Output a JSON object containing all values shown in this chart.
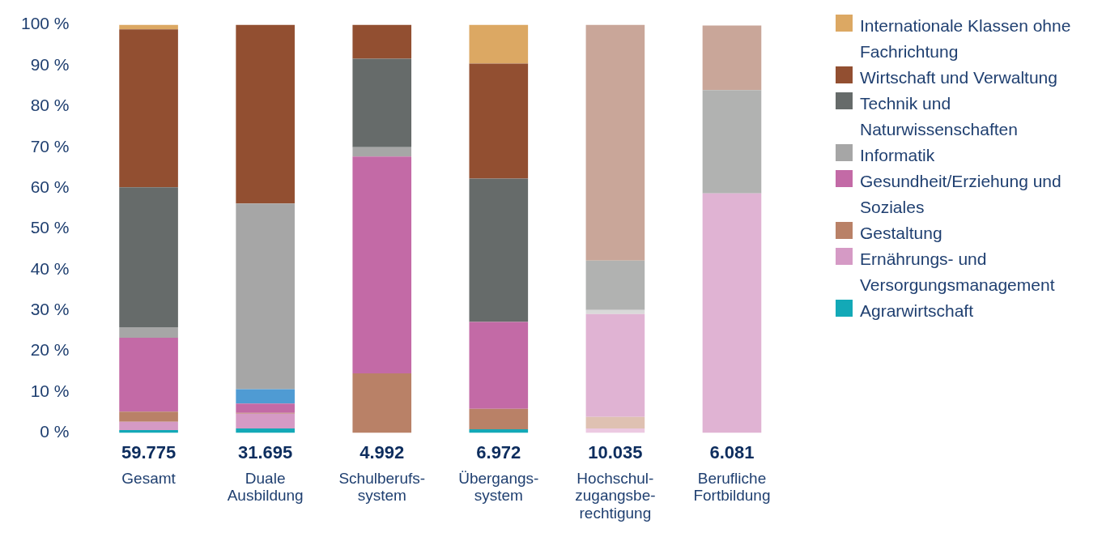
{
  "chart_data": {
    "type": "bar",
    "stacked": true,
    "legend": "right",
    "grid": false,
    "categories": [
      "Gesamt",
      "Duale\nAusbildung",
      "Schulberufs-\nsystem",
      "Übergangs-\nsystem",
      "Hochschul-\nzugangsbe-\nrechtigung",
      "Berufliche\nFortbildung"
    ],
    "ylim": [
      0,
      100
    ],
    "yticks": [
      {
        "value": 0,
        "label": "0 %"
      },
      {
        "value": 10,
        "label": "10 %"
      },
      {
        "value": 20,
        "label": "20 %"
      },
      {
        "value": 30,
        "label": "30 %"
      },
      {
        "value": 40,
        "label": "40 %"
      },
      {
        "value": 50,
        "label": "50 %"
      },
      {
        "value": 60,
        "label": "60 %"
      },
      {
        "value": 70,
        "label": "70 %"
      },
      {
        "value": 80,
        "label": "80 %"
      },
      {
        "value": 90,
        "label": "90 %"
      },
      {
        "value": 100,
        "label": "100 %"
      }
    ],
    "annotations": [
      "59.775",
      "31.695",
      "4.992",
      "6.972",
      "10.035",
      "6.081"
    ],
    "series": [
      {
        "name": "Agrarwirtschaft",
        "color": "#13a9b7",
        "values": [
          0.7,
          1.1,
          null,
          0.9,
          null,
          null
        ]
      },
      {
        "name": "Ernährungs- und Versorgungsmanagement",
        "color": "#d59ac5",
        "colors": [
          "#d59ac5",
          "#d59ac5",
          "#d59ac5",
          "#d59ac5",
          "#ecc9e1",
          "#ecc9e1"
        ],
        "values": [
          2.0,
          3.6,
          null,
          null,
          1.1,
          null
        ]
      },
      {
        "name": "Gestaltung",
        "color": "#b98167",
        "colors": [
          "#b98167",
          "#b98167",
          "#b98167",
          "#b98167",
          "#dfc1b2",
          "#dfc1b2"
        ],
        "values": [
          2.5,
          0.2,
          14.6,
          5.0,
          2.8,
          null
        ]
      },
      {
        "name": "Gesundheit/Erziehung und Soziales",
        "color": "#c36aa6",
        "colors": [
          "#c36aa6",
          "#c36aa6",
          "#c36aa6",
          "#c36aa6",
          "#e0b3d3",
          "#e0b3d3"
        ],
        "values": [
          18.1,
          2.3,
          53.1,
          21.3,
          25.2,
          58.7
        ]
      },
      {
        "color": "#4f9bd3",
        "values": [
          null,
          3.5,
          null,
          null,
          null,
          null
        ]
      },
      {
        "name": "Informatik",
        "color": "#a6a6a6",
        "colors": [
          "#a6a6a6",
          "#a6a6a6",
          "#a6a6a6",
          "#a6a6a6",
          "#d9d9d9",
          "#d9d9d9"
        ],
        "values": [
          2.6,
          45.5,
          2.3,
          null,
          1.0,
          null
        ]
      },
      {
        "name": "Technik und Naturwissenschaften",
        "color": "#666b6a",
        "colors": [
          "#666b6a",
          "#666b6a",
          "#666b6a",
          "#666b6a",
          "#b1b2b1",
          "#b1b2b1"
        ],
        "values": [
          34.3,
          null,
          21.7,
          35.1,
          12.1,
          25.3
        ]
      },
      {
        "name": "Wirtschaft und Verwaltung",
        "color": "#924f31",
        "colors": [
          "#924f31",
          "#924f31",
          "#924f31",
          "#924f31",
          "#c9a699",
          "#c9a699"
        ],
        "values": [
          38.7,
          43.8,
          8.3,
          28.2,
          57.8,
          15.8
        ]
      },
      {
        "name": "Internationale Klassen ohne Fachrichtung",
        "color": "#dca863",
        "values": [
          1.1,
          null,
          null,
          9.5,
          null,
          null
        ]
      }
    ]
  }
}
